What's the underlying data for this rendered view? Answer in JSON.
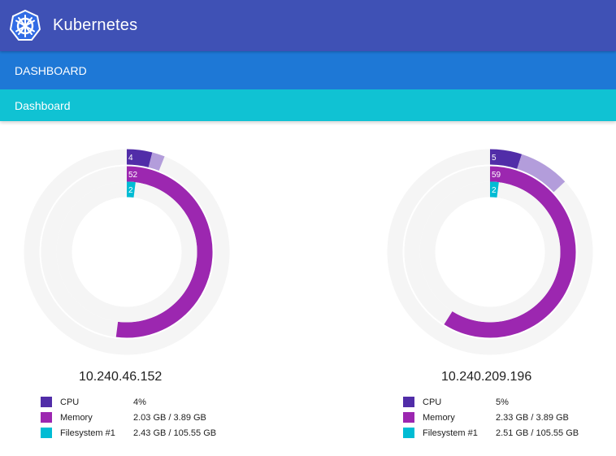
{
  "header": {
    "brand": "Kubernetes",
    "logo_icon": "kubernetes-helm-icon"
  },
  "tabbar": {
    "label": "DASHBOARD"
  },
  "breadcrumb": {
    "label": "Dashboard"
  },
  "colors": {
    "header": "#3f51b5",
    "tabbar": "#1e78d6",
    "breadcrumb": "#10c2d3",
    "cpu": "#512da8",
    "cpu_extra": "#b39ddb",
    "memory": "#9c27b0",
    "filesystem": "#00bcd4",
    "track": "#f5f5f5"
  },
  "chart_data": [
    {
      "type": "radial",
      "title": "10.240.46.152",
      "series": [
        {
          "name": "CPU",
          "percent": 4,
          "extra_percent": 2,
          "display_value": "4",
          "detail": "4%"
        },
        {
          "name": "Memory",
          "percent": 52,
          "display_value": "52",
          "detail": "2.03 GB / 3.89 GB"
        },
        {
          "name": "Filesystem #1",
          "percent": 2,
          "display_value": "2",
          "detail": "2.43 GB / 105.55 GB"
        }
      ]
    },
    {
      "type": "radial",
      "title": "10.240.209.196",
      "series": [
        {
          "name": "CPU",
          "percent": 5,
          "extra_percent": 8,
          "display_value": "5",
          "detail": "5%"
        },
        {
          "name": "Memory",
          "percent": 59,
          "display_value": "59",
          "detail": "2.33 GB / 3.89 GB"
        },
        {
          "name": "Filesystem #1",
          "percent": 2,
          "display_value": "2",
          "detail": "2.51 GB / 105.55 GB"
        }
      ]
    }
  ]
}
